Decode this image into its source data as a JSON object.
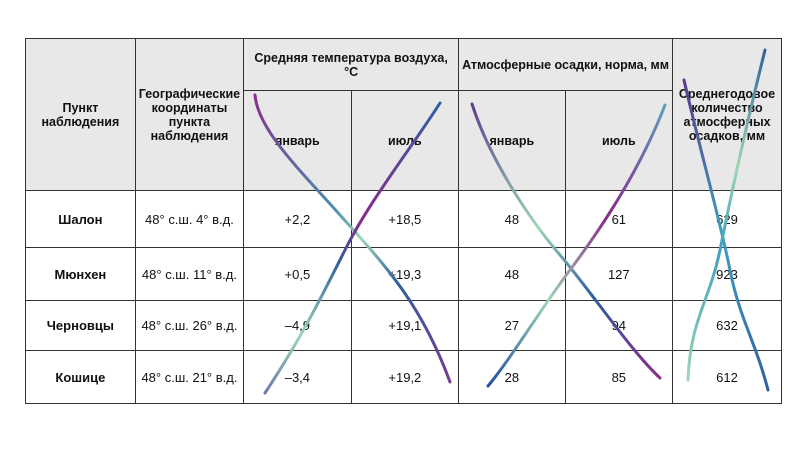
{
  "header": {
    "station": "Пункт наблюдения",
    "coords": "Географические координаты пункта наблюдения",
    "temp_group": "Средняя температура воздуха, °С",
    "precip_group": "Атмосферные осадки, норма, мм",
    "annual": "Среднегодовое количество атмосферных осадков, мм",
    "temp_jan": "январь",
    "temp_jul": "июль",
    "precip_jan": "январь",
    "precip_jul": "июль"
  },
  "rows": [
    {
      "city": "Шалон",
      "coords": "48° с.ш. 4° в.д.",
      "t_jan": "+2,2",
      "t_jul": "+18,5",
      "p_jan": "48",
      "p_jul": "61",
      "annual": "629"
    },
    {
      "city": "Мюнхен",
      "coords": "48° с.ш. 11° в.д.",
      "t_jan": "+0,5",
      "t_jul": "+19,3",
      "p_jan": "48",
      "p_jul": "127",
      "annual": "923"
    },
    {
      "city": "Черновцы",
      "coords": "48° с.ш. 26° в.д.",
      "t_jan": "–4,9",
      "t_jul": "+19,1",
      "p_jan": "27",
      "p_jul": "94",
      "annual": "632"
    },
    {
      "city": "Кошице",
      "coords": "48° с.ш. 21° в.д.",
      "t_jan": "–3,4",
      "t_jul": "+19,2",
      "p_jan": "28",
      "p_jul": "85",
      "annual": "612"
    }
  ],
  "colors": {
    "stroke_purple": "#8a2a8a",
    "stroke_blue": "#2f5f9f",
    "stroke_green": "#9fd6b6"
  }
}
